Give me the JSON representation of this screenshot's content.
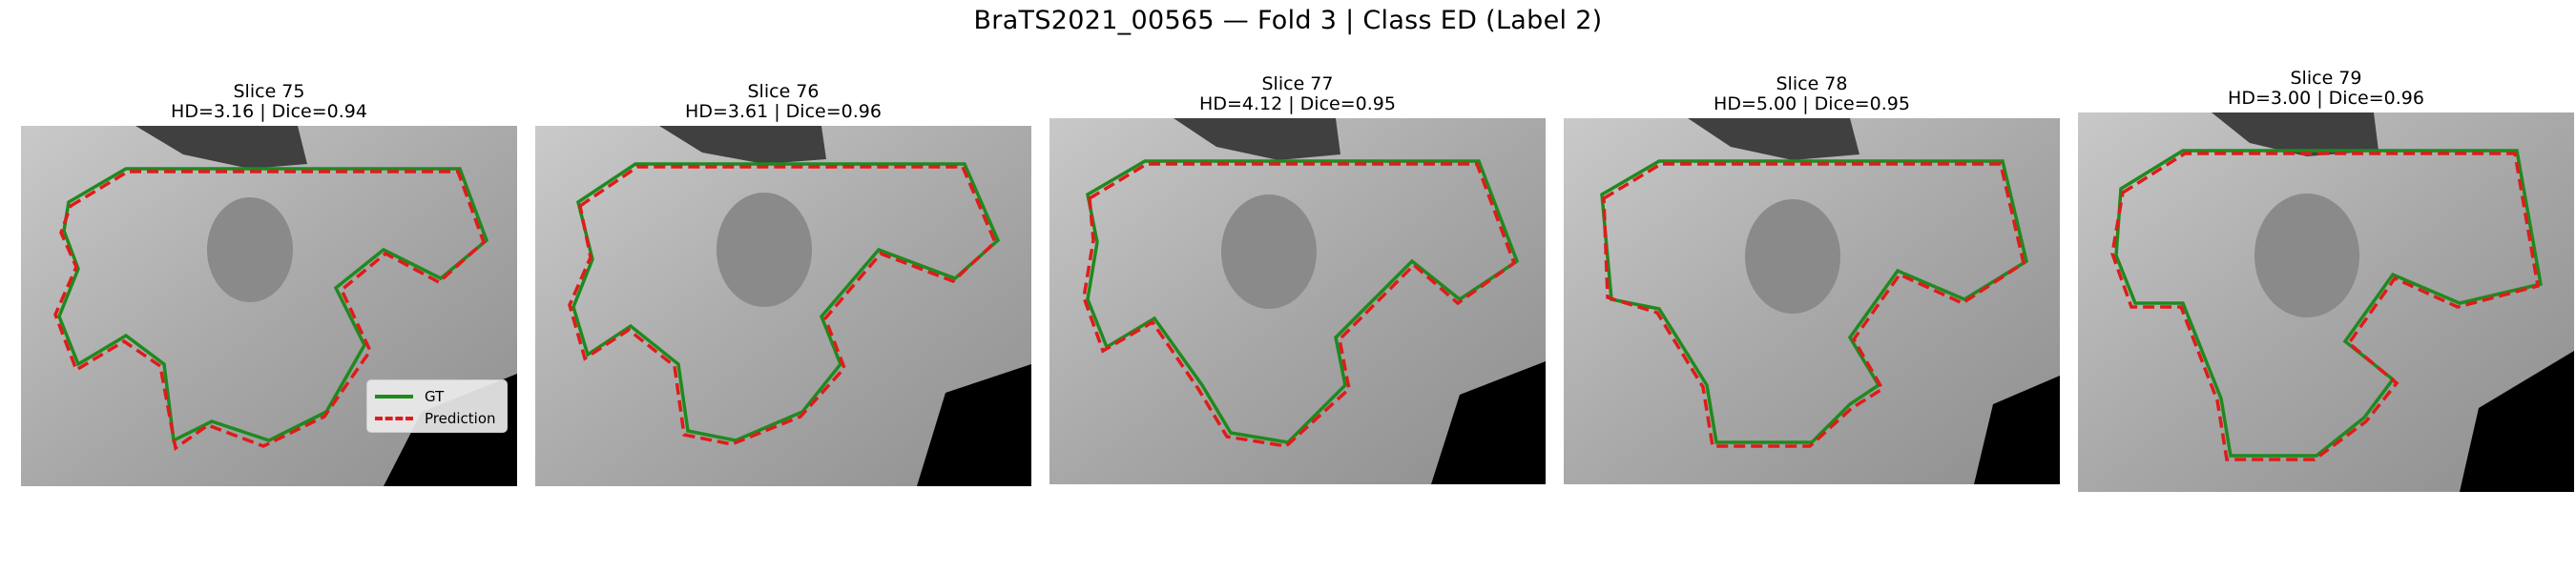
{
  "title": "BraTS2021_00565 — Fold 3 | Class ED (Label 2)",
  "colors": {
    "gt": "#1e8a1e",
    "prediction": "#e01b1b",
    "background": "#000000",
    "tissue": "#b4b4b4"
  },
  "legend": {
    "gt_label": "GT",
    "prediction_label": "Prediction"
  },
  "panels": [
    {
      "slice": "Slice 75",
      "metrics": "HD=3.16 | Dice=0.94"
    },
    {
      "slice": "Slice 76",
      "metrics": "HD=3.61 | Dice=0.96"
    },
    {
      "slice": "Slice 77",
      "metrics": "HD=4.12 | Dice=0.95"
    },
    {
      "slice": "Slice 78",
      "metrics": "HD=5.00 | Dice=0.95"
    },
    {
      "slice": "Slice 79",
      "metrics": "HD=3.00 | Dice=0.96"
    }
  ]
}
